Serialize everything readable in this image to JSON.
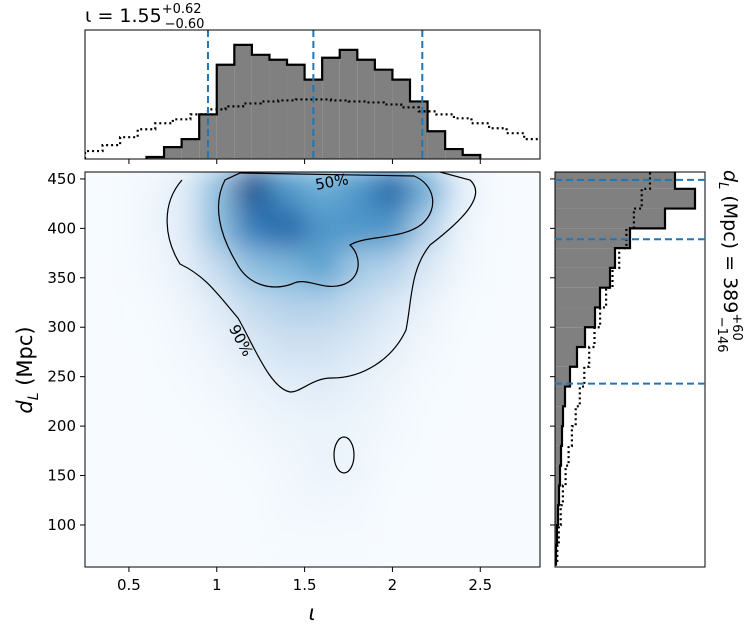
{
  "chart_data": [
    {
      "type": "histogram",
      "orientation": "vertical",
      "title": {
        "main": "ι = 1.55",
        "sup": "+0.62",
        "sub": "−0.60"
      },
      "xlim": [
        0.25,
        2.84
      ],
      "ylim": [
        0,
        130
      ],
      "xticks": [
        0.5,
        1.0,
        1.5,
        2.0,
        2.5
      ],
      "quantiles": [
        0.95,
        1.55,
        2.17
      ],
      "quantile_color": "#1f77b4",
      "series": [
        {
          "style": "filled",
          "color": "#808080",
          "bins": [
            0.6,
            0.7,
            0.8,
            0.9,
            1.0,
            1.1,
            1.2,
            1.3,
            1.4,
            1.5,
            1.6,
            1.7,
            1.8,
            1.9,
            2.0,
            2.1,
            2.2,
            2.3,
            2.4,
            2.5
          ],
          "values": [
            2,
            12,
            20,
            45,
            95,
            115,
            105,
            100,
            95,
            80,
            102,
            110,
            100,
            90,
            80,
            58,
            28,
            10,
            4
          ]
        },
        {
          "style": "dotted",
          "color": "#000000",
          "bins": [
            0.25,
            0.35,
            0.45,
            0.55,
            0.65,
            0.75,
            0.85,
            0.95,
            1.05,
            1.15,
            1.25,
            1.35,
            1.45,
            1.55,
            1.65,
            1.75,
            1.85,
            1.95,
            2.05,
            2.15,
            2.25,
            2.35,
            2.45,
            2.55,
            2.65,
            2.75,
            2.85
          ],
          "values": [
            8,
            14,
            22,
            30,
            36,
            40,
            45,
            50,
            53,
            56,
            58,
            59,
            60,
            60,
            59,
            58,
            57,
            55,
            52,
            48,
            45,
            41,
            36,
            31,
            26,
            20
          ]
        }
      ]
    },
    {
      "type": "heatmap",
      "xlabel": "ι",
      "ylabel": {
        "main": "d",
        "sub": "L",
        "rest": " (Mpc)"
      },
      "xlim": [
        0.25,
        2.84
      ],
      "ylim": [
        57.5,
        457
      ],
      "xticks": [
        0.5,
        1.0,
        1.5,
        2.0,
        2.5
      ],
      "yticks": [
        100,
        150,
        200,
        250,
        300,
        350,
        400,
        450
      ],
      "x": [
        0.4,
        0.6,
        0.8,
        1.0,
        1.2,
        1.4,
        1.6,
        1.8,
        2.0,
        2.2,
        2.4,
        2.6
      ],
      "y": [
        440,
        400,
        360,
        320,
        280,
        240,
        200,
        160,
        120,
        80
      ],
      "colormap": [
        "#f7fbff",
        "#c6dbef",
        "#6baed6",
        "#2171b5",
        "#08306b"
      ],
      "z": [
        [
          0,
          0.03,
          0.1,
          0.4,
          0.9,
          0.6,
          0.5,
          0.6,
          0.8,
          0.5,
          0.1,
          0
        ],
        [
          0,
          0.03,
          0.1,
          0.4,
          0.7,
          0.8,
          0.6,
          0.6,
          0.6,
          0.3,
          0.05,
          0
        ],
        [
          0,
          0.02,
          0.08,
          0.25,
          0.4,
          0.45,
          0.55,
          0.35,
          0.3,
          0.15,
          0.03,
          0
        ],
        [
          0,
          0.01,
          0.04,
          0.12,
          0.25,
          0.3,
          0.3,
          0.25,
          0.15,
          0.06,
          0.01,
          0
        ],
        [
          0,
          0,
          0.02,
          0.06,
          0.15,
          0.2,
          0.2,
          0.15,
          0.08,
          0.03,
          0,
          0
        ],
        [
          0,
          0,
          0.01,
          0.03,
          0.06,
          0.1,
          0.12,
          0.08,
          0.04,
          0.01,
          0,
          0
        ],
        [
          0,
          0,
          0,
          0.01,
          0.03,
          0.05,
          0.06,
          0.05,
          0.02,
          0,
          0,
          0
        ],
        [
          0,
          0,
          0,
          0,
          0.01,
          0.03,
          0.06,
          0.05,
          0.01,
          0,
          0,
          0
        ],
        [
          0,
          0,
          0,
          0,
          0,
          0.02,
          0.03,
          0.02,
          0,
          0,
          0,
          0
        ],
        [
          0,
          0,
          0,
          0,
          0,
          0.01,
          0.01,
          0.01,
          0,
          0,
          0,
          0
        ]
      ],
      "contour_labels": [
        "50%",
        "90%"
      ]
    },
    {
      "type": "histogram",
      "orientation": "horizontal",
      "title": {
        "main": "d",
        "sub1": "L",
        "rest": " (Mpc) = 389",
        "sup": "+60",
        "sub": "−146"
      },
      "xlim": [
        0,
        150
      ],
      "ylim": [
        57.5,
        457
      ],
      "yticks": [
        100,
        150,
        200,
        250,
        300,
        350,
        400,
        450
      ],
      "quantiles": [
        243,
        389,
        449
      ],
      "quantile_color": "#1f77b4",
      "series": [
        {
          "style": "filled",
          "color": "#808080",
          "bins": [
            60,
            80,
            100,
            120,
            140,
            160,
            180,
            200,
            220,
            240,
            260,
            280,
            300,
            320,
            340,
            360,
            380,
            400,
            420,
            440,
            460
          ],
          "values": [
            1,
            2,
            3,
            4,
            5,
            6,
            7,
            8,
            10,
            15,
            22,
            30,
            40,
            45,
            55,
            60,
            75,
            110,
            140,
            120
          ]
        },
        {
          "style": "dotted",
          "color": "#000000",
          "bins": [
            60,
            80,
            100,
            120,
            140,
            160,
            180,
            200,
            220,
            240,
            260,
            280,
            300,
            320,
            340,
            360,
            380,
            400,
            420,
            440,
            460
          ],
          "values": [
            2.3,
            3.8,
            5.7,
            7.9,
            10.6,
            13.6,
            16.9,
            20.7,
            24.8,
            29.3,
            34.2,
            39.5,
            45.1,
            51.1,
            57.5,
            64.2,
            71.4,
            78.9,
            86.7,
            95
          ]
        }
      ]
    }
  ]
}
